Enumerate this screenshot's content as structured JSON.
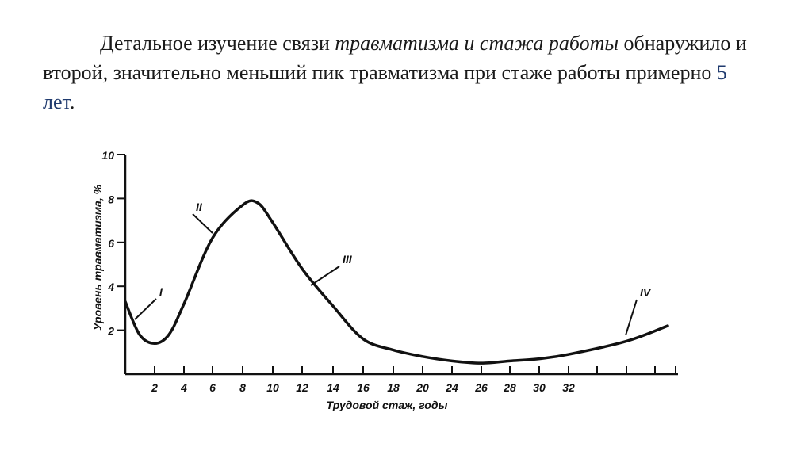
{
  "slide": {
    "text_1": "Детальное изучение связи ",
    "text_2": "травматизма и стажа работы",
    "text_3": " обнаружило и второй, значительно меньший пик травматизма при стаже работы примерно ",
    "text_4": "5 лет",
    "text_5": "."
  },
  "chart_data": {
    "type": "line",
    "xlabel": "Трудовой стаж, годы",
    "ylabel": "Уровень травматизма, %",
    "ylim": [
      0,
      10
    ],
    "y_ticks": [
      "2",
      "4",
      "6",
      "8",
      "10"
    ],
    "x_tick_labels": [
      "2",
      "4",
      "6",
      "8",
      "10",
      "12",
      "14",
      "16",
      "18",
      "20",
      "24",
      "26",
      "28",
      "30",
      "32"
    ],
    "grid": false,
    "legend": "none",
    "series": [
      {
        "x": [
          "0",
          "1",
          "2",
          "3",
          "4",
          "6",
          "8",
          "9",
          "10",
          "12",
          "14",
          "16",
          "18",
          "20",
          "24",
          "26",
          "28",
          "30",
          "32",
          "34",
          "36"
        ],
        "values": [
          3.3,
          1.8,
          1.4,
          1.8,
          3.2,
          6.2,
          7.7,
          7.8,
          6.9,
          4.8,
          3.1,
          1.6,
          1.1,
          0.8,
          0.6,
          0.5,
          0.6,
          0.7,
          0.9,
          1.5,
          2.2
        ]
      }
    ],
    "annotations": [
      {
        "text": "I",
        "x": "2",
        "y": 2.6
      },
      {
        "text": "II",
        "x": "6",
        "y": 6.5
      },
      {
        "text": "III",
        "x": "12",
        "y": 3.6
      },
      {
        "text": "IV",
        "x": "32",
        "y": 1.5
      }
    ]
  },
  "colors": {
    "line": "#111111",
    "text": "#1a1a1a",
    "highlight": "#1f3a6e"
  }
}
